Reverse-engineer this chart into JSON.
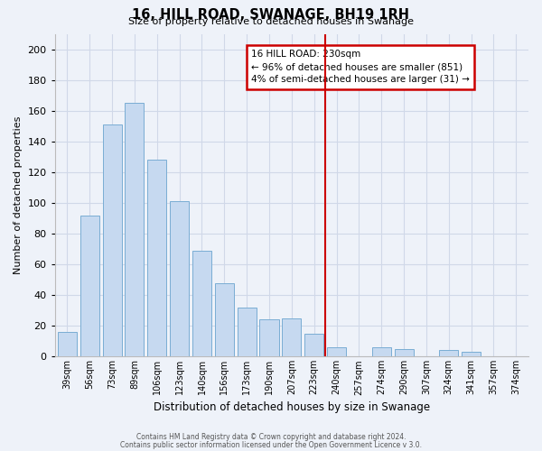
{
  "title": "16, HILL ROAD, SWANAGE, BH19 1RH",
  "subtitle": "Size of property relative to detached houses in Swanage",
  "xlabel": "Distribution of detached houses by size in Swanage",
  "ylabel": "Number of detached properties",
  "bar_labels": [
    "39sqm",
    "56sqm",
    "73sqm",
    "89sqm",
    "106sqm",
    "123sqm",
    "140sqm",
    "156sqm",
    "173sqm",
    "190sqm",
    "207sqm",
    "223sqm",
    "240sqm",
    "257sqm",
    "274sqm",
    "290sqm",
    "307sqm",
    "324sqm",
    "341sqm",
    "357sqm",
    "374sqm"
  ],
  "bar_values": [
    16,
    92,
    151,
    165,
    128,
    101,
    69,
    48,
    32,
    24,
    25,
    15,
    6,
    0,
    6,
    5,
    0,
    4,
    3,
    0,
    0
  ],
  "bar_color": "#c6d9f0",
  "bar_edge_color": "#7aadd4",
  "vline_index": 11.5,
  "vline_color": "#cc0000",
  "annotation_title": "16 HILL ROAD: 230sqm",
  "annotation_line1": "← 96% of detached houses are smaller (851)",
  "annotation_line2": "4% of semi-detached houses are larger (31) →",
  "annotation_box_color": "#cc0000",
  "ylim": [
    0,
    210
  ],
  "yticks": [
    0,
    20,
    40,
    60,
    80,
    100,
    120,
    140,
    160,
    180,
    200
  ],
  "footer1": "Contains HM Land Registry data © Crown copyright and database right 2024.",
  "footer2": "Contains public sector information licensed under the Open Government Licence v 3.0.",
  "bg_color": "#eef2f9",
  "grid_color": "#d0d8e8",
  "plot_bg": "#eef2f9"
}
